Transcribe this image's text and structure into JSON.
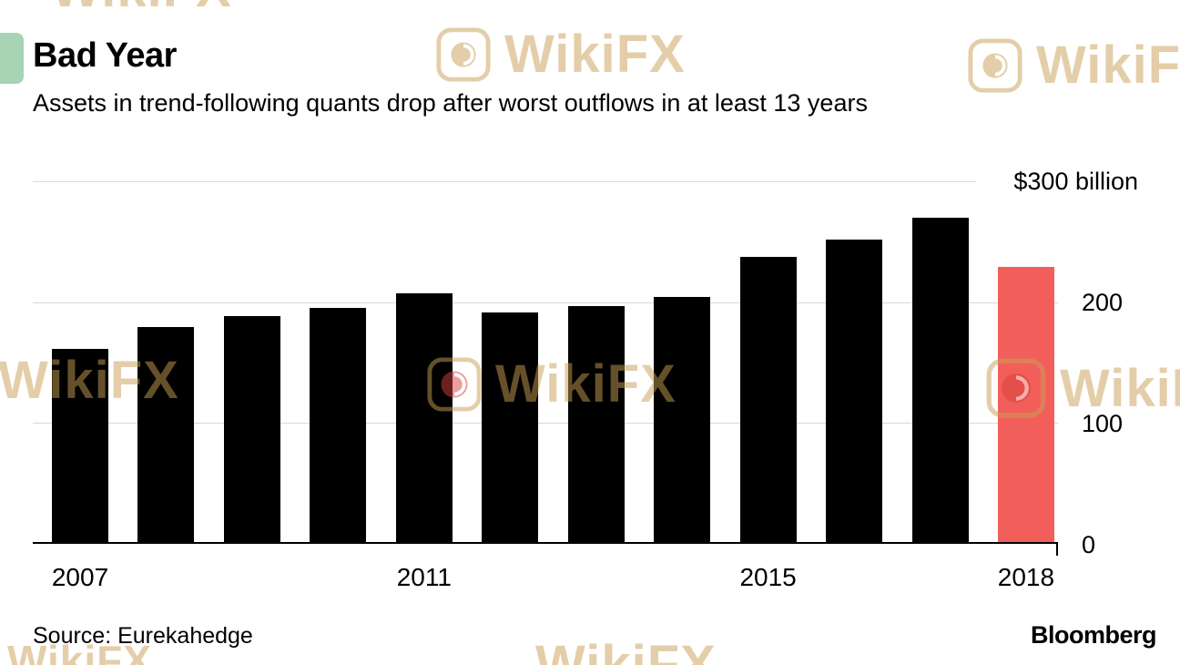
{
  "header": {
    "title": "Bad Year",
    "subtitle": "Assets in trend-following quants drop after worst outflows in at least 13 years"
  },
  "footer": {
    "source": "Source: Eurekahedge",
    "brand": "Bloomberg"
  },
  "watermark": {
    "text": "WikiFX"
  },
  "chart_data": {
    "type": "bar",
    "title": "Bad Year",
    "subtitle": "Assets in trend-following quants drop after worst outflows in at least 13 years",
    "categories": [
      "2007",
      "2008",
      "2009",
      "2010",
      "2011",
      "2012",
      "2013",
      "2014",
      "2015",
      "2016",
      "2017",
      "2018"
    ],
    "values": [
      160,
      178,
      187,
      194,
      206,
      190,
      195,
      203,
      236,
      250,
      268,
      228
    ],
    "unit": "billion USD",
    "ylim": [
      0,
      300
    ],
    "ytick_labels": [
      "$300 billion",
      "200",
      "100",
      "0"
    ],
    "xticks": [
      {
        "index": 0,
        "label": "2007"
      },
      {
        "index": 4,
        "label": "2011"
      },
      {
        "index": 8,
        "label": "2015"
      },
      {
        "index": 11,
        "label": "2018"
      }
    ],
    "bar_color": "#000000",
    "highlight_index": 11,
    "highlight_color": "#f25f5b",
    "grid": "horizontal",
    "legend": "none"
  }
}
